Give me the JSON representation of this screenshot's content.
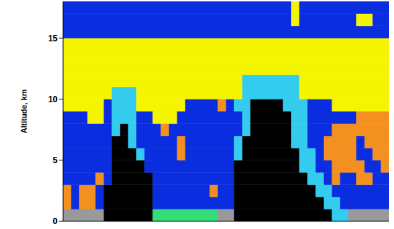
{
  "chart_data": {
    "type": "heatmap",
    "y_label": "Altitude, km",
    "xlim": [
      0,
      40
    ],
    "ylim": [
      0,
      18
    ],
    "yticks": [
      0,
      5,
      10,
      15
    ],
    "tick_labels": "y",
    "colors": [
      "#0a2de0",
      "#f5f500",
      "#33ccee",
      "#000000",
      "#f39020",
      "#33dd77",
      "#999999"
    ],
    "x_bins": [
      0,
      1,
      2,
      3,
      4,
      5,
      6,
      7,
      8,
      9,
      10,
      11,
      12,
      13,
      14,
      15,
      16,
      17,
      18,
      19,
      20,
      21,
      22,
      23,
      24,
      25,
      26,
      27,
      28,
      29,
      30,
      31,
      32,
      33,
      34,
      35,
      36,
      37,
      38,
      39,
      40
    ],
    "y_bins": [
      0,
      1,
      2,
      3,
      4,
      5,
      6,
      7,
      8,
      9,
      10,
      11,
      12,
      13,
      14,
      15,
      16,
      17,
      18
    ],
    "cells": [
      [
        6,
        6,
        6,
        6,
        6,
        3,
        3,
        3,
        3,
        3,
        3,
        5,
        5,
        5,
        5,
        5,
        5,
        5,
        5,
        6,
        6,
        3,
        3,
        3,
        3,
        3,
        3,
        3,
        3,
        3,
        3,
        3,
        3,
        2,
        2,
        6,
        6,
        6,
        6,
        6
      ],
      [
        4,
        0,
        4,
        4,
        0,
        3,
        3,
        3,
        3,
        3,
        3,
        0,
        0,
        0,
        0,
        0,
        0,
        0,
        0,
        0,
        0,
        3,
        3,
        3,
        3,
        3,
        3,
        3,
        3,
        3,
        3,
        3,
        2,
        2,
        0,
        0,
        0,
        0,
        0,
        0
      ],
      [
        4,
        0,
        4,
        4,
        0,
        3,
        3,
        3,
        3,
        3,
        3,
        0,
        0,
        0,
        0,
        0,
        0,
        0,
        4,
        0,
        0,
        3,
        3,
        3,
        3,
        3,
        3,
        3,
        3,
        3,
        3,
        2,
        2,
        0,
        0,
        0,
        0,
        0,
        0,
        0
      ],
      [
        0,
        0,
        0,
        0,
        4,
        0,
        3,
        3,
        3,
        3,
        3,
        0,
        0,
        0,
        0,
        0,
        0,
        0,
        0,
        0,
        0,
        3,
        3,
        3,
        3,
        3,
        3,
        3,
        3,
        3,
        2,
        2,
        0,
        4,
        0,
        0,
        4,
        4,
        0,
        0
      ],
      [
        0,
        0,
        0,
        0,
        0,
        0,
        3,
        3,
        3,
        3,
        0,
        0,
        0,
        0,
        0,
        0,
        0,
        0,
        0,
        0,
        0,
        3,
        3,
        3,
        3,
        3,
        3,
        3,
        3,
        2,
        2,
        0,
        0,
        4,
        4,
        4,
        4,
        0,
        0,
        4
      ],
      [
        0,
        0,
        0,
        0,
        0,
        0,
        3,
        3,
        3,
        2,
        0,
        0,
        0,
        0,
        4,
        0,
        0,
        0,
        0,
        0,
        0,
        2,
        3,
        3,
        3,
        3,
        3,
        3,
        3,
        2,
        2,
        0,
        4,
        4,
        4,
        4,
        0,
        0,
        4,
        4
      ],
      [
        0,
        0,
        0,
        0,
        0,
        0,
        3,
        3,
        2,
        0,
        0,
        0,
        0,
        0,
        4,
        0,
        0,
        0,
        0,
        0,
        0,
        2,
        3,
        3,
        3,
        3,
        3,
        3,
        2,
        2,
        0,
        0,
        4,
        4,
        4,
        4,
        0,
        4,
        4,
        4
      ],
      [
        0,
        0,
        0,
        0,
        0,
        0,
        2,
        3,
        2,
        0,
        0,
        0,
        4,
        0,
        0,
        0,
        0,
        0,
        0,
        0,
        0,
        0,
        2,
        3,
        3,
        3,
        3,
        3,
        2,
        2,
        0,
        0,
        0,
        4,
        4,
        4,
        4,
        4,
        4,
        4
      ],
      [
        0,
        0,
        0,
        1,
        1,
        0,
        2,
        2,
        2,
        0,
        0,
        1,
        1,
        1,
        0,
        0,
        0,
        0,
        0,
        0,
        0,
        0,
        2,
        3,
        3,
        3,
        3,
        3,
        2,
        2,
        0,
        0,
        0,
        0,
        0,
        0,
        4,
        4,
        4,
        4
      ],
      [
        1,
        1,
        1,
        1,
        1,
        0,
        2,
        2,
        2,
        1,
        1,
        1,
        1,
        1,
        1,
        0,
        0,
        0,
        0,
        4,
        0,
        2,
        2,
        3,
        3,
        3,
        3,
        2,
        2,
        2,
        0,
        0,
        0,
        1,
        1,
        1,
        1,
        1,
        1,
        1
      ],
      [
        1,
        1,
        1,
        1,
        1,
        1,
        2,
        2,
        2,
        1,
        1,
        1,
        1,
        1,
        1,
        1,
        1,
        1,
        1,
        1,
        1,
        1,
        2,
        2,
        2,
        2,
        2,
        2,
        2,
        1,
        1,
        1,
        1,
        1,
        1,
        1,
        1,
        1,
        1,
        1
      ],
      [
        1,
        1,
        1,
        1,
        1,
        1,
        1,
        1,
        1,
        1,
        1,
        1,
        1,
        1,
        1,
        1,
        1,
        1,
        1,
        1,
        1,
        1,
        2,
        2,
        2,
        2,
        2,
        2,
        2,
        1,
        1,
        1,
        1,
        1,
        1,
        1,
        1,
        1,
        1,
        1
      ],
      [
        1,
        1,
        1,
        1,
        1,
        1,
        1,
        1,
        1,
        1,
        1,
        1,
        1,
        1,
        1,
        1,
        1,
        1,
        1,
        1,
        1,
        1,
        1,
        1,
        1,
        1,
        1,
        1,
        1,
        1,
        1,
        1,
        1,
        1,
        1,
        1,
        1,
        1,
        1,
        1
      ],
      [
        1,
        1,
        1,
        1,
        1,
        1,
        1,
        1,
        1,
        1,
        1,
        1,
        1,
        1,
        1,
        1,
        1,
        1,
        1,
        1,
        1,
        1,
        1,
        1,
        1,
        1,
        1,
        1,
        1,
        1,
        1,
        1,
        1,
        1,
        1,
        1,
        1,
        1,
        1,
        1
      ],
      [
        1,
        1,
        1,
        1,
        1,
        1,
        1,
        1,
        1,
        1,
        1,
        1,
        1,
        1,
        1,
        1,
        1,
        1,
        1,
        1,
        1,
        1,
        1,
        1,
        1,
        1,
        1,
        1,
        1,
        1,
        1,
        1,
        1,
        1,
        1,
        1,
        1,
        1,
        1,
        1
      ],
      [
        0,
        0,
        0,
        0,
        0,
        0,
        0,
        0,
        0,
        0,
        0,
        0,
        0,
        0,
        0,
        0,
        0,
        0,
        0,
        0,
        0,
        0,
        0,
        0,
        0,
        0,
        0,
        0,
        0,
        0,
        0,
        0,
        0,
        0,
        0,
        0,
        0,
        0,
        0,
        0
      ],
      [
        0,
        0,
        0,
        0,
        0,
        0,
        0,
        0,
        0,
        0,
        0,
        0,
        0,
        0,
        0,
        0,
        0,
        0,
        0,
        0,
        0,
        0,
        0,
        0,
        0,
        0,
        0,
        0,
        1,
        0,
        0,
        0,
        0,
        0,
        0,
        0,
        1,
        1,
        0,
        0
      ],
      [
        0,
        0,
        0,
        0,
        0,
        0,
        0,
        0,
        0,
        0,
        0,
        0,
        0,
        0,
        0,
        0,
        0,
        0,
        0,
        0,
        0,
        0,
        0,
        0,
        0,
        0,
        0,
        0,
        1,
        0,
        0,
        0,
        0,
        0,
        0,
        0,
        0,
        0,
        0,
        0
      ]
    ]
  }
}
